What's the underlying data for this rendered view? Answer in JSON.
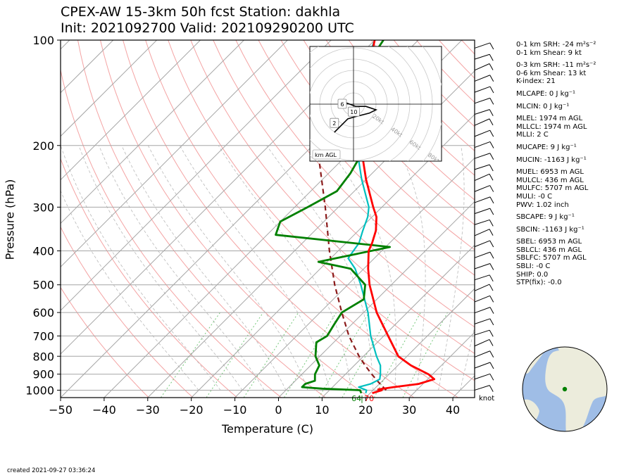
{
  "title_line1": "CPEX-AW 15-3km  50h fcst  Station: dakhla",
  "title_line2": "Init: 2021092700  Valid: 202109290200 UTC",
  "created": "created 2021-09-27 03:36:24",
  "units_label": "knot",
  "colors": {
    "temperature": "#ff0000",
    "dewpoint": "#008000",
    "wetbulb": "#00bfbf",
    "parcel": "#8b1a1a",
    "isotherm": "#a6a6a6",
    "dry_adiabat": "#f4a3a3",
    "moist_adiabat": "#b9b9b9",
    "mixing_ratio": "#3cb043"
  },
  "chart_data": {
    "type": "skewt",
    "xlabel": "Temperature (C)",
    "ylabel": "Pressure (hPa)",
    "xlim": [
      -50,
      45
    ],
    "ylim": [
      1050,
      100
    ],
    "xticks": [
      -50,
      -40,
      -30,
      -20,
      -10,
      0,
      10,
      20,
      30,
      40
    ],
    "yticks": [
      1000,
      900,
      800,
      700,
      600,
      500,
      400,
      300,
      200,
      100
    ],
    "isobars": [
      1000,
      900,
      800,
      700,
      600,
      500,
      400,
      300,
      200
    ],
    "surface_labels": {
      "dewpoint": "64",
      "temperature": "70"
    },
    "temperature": [
      [
        1020,
        20.5
      ],
      [
        1000,
        22
      ],
      [
        995,
        21
      ],
      [
        980,
        24
      ],
      [
        960,
        29
      ],
      [
        930,
        31.5
      ],
      [
        900,
        29
      ],
      [
        850,
        23
      ],
      [
        800,
        18
      ],
      [
        700,
        11
      ],
      [
        600,
        3
      ],
      [
        500,
        -5
      ],
      [
        450,
        -9
      ],
      [
        400,
        -13
      ],
      [
        380,
        -14
      ],
      [
        350,
        -16
      ],
      [
        320,
        -19
      ],
      [
        300,
        -22
      ],
      [
        250,
        -30
      ],
      [
        200,
        -39
      ],
      [
        170,
        -45
      ],
      [
        140,
        -51
      ],
      [
        120,
        -55
      ],
      [
        100,
        -60
      ]
    ],
    "dewpoint": [
      [
        1020,
        18
      ],
      [
        1000,
        17
      ],
      [
        990,
        8
      ],
      [
        980,
        3
      ],
      [
        960,
        3
      ],
      [
        940,
        4.5
      ],
      [
        900,
        3
      ],
      [
        850,
        2
      ],
      [
        800,
        -1
      ],
      [
        730,
        -4
      ],
      [
        700,
        -3
      ],
      [
        650,
        -4
      ],
      [
        600,
        -5
      ],
      [
        550,
        -3
      ],
      [
        500,
        -6
      ],
      [
        450,
        -13
      ],
      [
        430,
        -22
      ],
      [
        390,
        -9
      ],
      [
        360,
        -38
      ],
      [
        330,
        -40
      ],
      [
        300,
        -37
      ],
      [
        270,
        -34
      ],
      [
        240,
        -35
      ],
      [
        210,
        -37
      ],
      [
        190,
        -40
      ],
      [
        170,
        -45
      ],
      [
        150,
        -52
      ],
      [
        130,
        -55
      ],
      [
        100,
        -58
      ]
    ],
    "wetbulb": [
      [
        1020,
        19
      ],
      [
        1000,
        18.5
      ],
      [
        980,
        16
      ],
      [
        960,
        18
      ],
      [
        930,
        19
      ],
      [
        900,
        18
      ],
      [
        850,
        16
      ],
      [
        800,
        13
      ],
      [
        700,
        7
      ],
      [
        600,
        1
      ],
      [
        500,
        -7
      ],
      [
        450,
        -12
      ],
      [
        420,
        -16
      ],
      [
        380,
        -17
      ],
      [
        350,
        -19
      ],
      [
        320,
        -21
      ],
      [
        300,
        -23
      ],
      [
        250,
        -31
      ],
      [
        200,
        -40
      ],
      [
        170,
        -46
      ],
      [
        140,
        -52
      ],
      [
        120,
        -56
      ],
      [
        100,
        -60
      ]
    ],
    "parcel": [
      [
        1000,
        23
      ],
      [
        950,
        19.5
      ],
      [
        900,
        16
      ],
      [
        850,
        12.5
      ],
      [
        800,
        9
      ],
      [
        700,
        2
      ],
      [
        600,
        -5
      ],
      [
        500,
        -13
      ],
      [
        400,
        -22
      ],
      [
        300,
        -33
      ],
      [
        200,
        -49
      ],
      [
        140,
        -59
      ]
    ],
    "hodograph": {
      "xlim": [
        -80,
        80
      ],
      "ylim": [
        -80,
        80
      ],
      "rings": [
        10,
        20,
        30,
        40,
        50,
        60,
        70,
        80
      ],
      "ring_labels": [
        "20kt",
        "40kt",
        "60kt",
        "80kt"
      ],
      "height_labels": [
        "6",
        "10",
        "2"
      ],
      "legend": "km AGL",
      "points": [
        [
          -17,
          -25
        ],
        [
          -11,
          -19
        ],
        [
          -5,
          -13
        ],
        [
          2,
          -11
        ],
        [
          14,
          -8
        ],
        [
          20,
          -5
        ],
        [
          11,
          -2
        ],
        [
          2,
          -2
        ],
        [
          -6,
          1
        ],
        [
          -10,
          0
        ]
      ]
    },
    "map": {
      "station_marker": "green-dot",
      "station": "dakhla"
    }
  },
  "params": [
    {
      "label": "0-1 km SRH: -24 m²s⁻²",
      "gap": false
    },
    {
      "label": "0-1 km Shear: 9 kt",
      "gap": false
    },
    {
      "label": "0-3 km SRH: -11 m²s⁻²",
      "gap": true
    },
    {
      "label": "0-6 km Shear: 13 kt",
      "gap": false
    },
    {
      "label": "K-index: 21",
      "gap": false
    },
    {
      "label": "MLCAPE: 0 J kg⁻¹",
      "gap": true
    },
    {
      "label": "MLCIN: 0 J kg⁻¹",
      "gap": true
    },
    {
      "label": "MLEL: 1974 m AGL",
      "gap": true
    },
    {
      "label": "MLLCL: 1974 m AGL",
      "gap": false
    },
    {
      "label": "MLLI: 2 C",
      "gap": false
    },
    {
      "label": "MUCAPE: 9 J kg⁻¹",
      "gap": true
    },
    {
      "label": "MUCIN: -1163 J kg⁻¹",
      "gap": true
    },
    {
      "label": "MUEL: 6953 m AGL",
      "gap": true
    },
    {
      "label": "MULCL: 436 m AGL",
      "gap": false
    },
    {
      "label": "MULFC: 5707 m AGL",
      "gap": false
    },
    {
      "label": "MULI: -0 C",
      "gap": false
    },
    {
      "label": "PWV: 1.02 inch",
      "gap": false
    },
    {
      "label": "SBCAPE: 9 J kg⁻¹",
      "gap": true
    },
    {
      "label": "SBCIN: -1163 J kg⁻¹",
      "gap": true
    },
    {
      "label": "SBEL: 6953 m AGL",
      "gap": true
    },
    {
      "label": "SBLCL: 436 m AGL",
      "gap": false
    },
    {
      "label": "SBLFC: 5707 m AGL",
      "gap": false
    },
    {
      "label": "SBLI: -0 C",
      "gap": false
    },
    {
      "label": "SHIP: 0.0",
      "gap": false
    },
    {
      "label": "STP(fix): -0.0",
      "gap": false
    }
  ]
}
